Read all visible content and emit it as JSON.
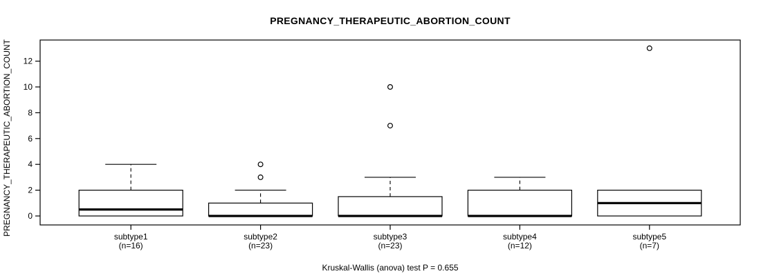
{
  "chart_data": {
    "type": "boxplot",
    "title": "PREGNANCY_THERAPEUTIC_ABORTION_COUNT",
    "ylabel": "PREGNANCY_THERAPEUTIC_ABORTION_COUNT",
    "footer": "Kruskal-Wallis (anova) test P = 0.655",
    "ylim": [
      0,
      13
    ],
    "yticks": [
      0,
      2,
      4,
      6,
      8,
      10,
      12
    ],
    "grid": false,
    "groups": [
      {
        "label": "subtype1",
        "n_label": "(n=16)",
        "n": 16,
        "q1": 0,
        "median": 0.5,
        "q3": 2,
        "whisker_low": 0,
        "whisker_high": 4,
        "outliers": []
      },
      {
        "label": "subtype2",
        "n_label": "(n=23)",
        "n": 23,
        "q1": 0,
        "median": 0,
        "q3": 1,
        "whisker_low": 0,
        "whisker_high": 2,
        "outliers": [
          3,
          4
        ]
      },
      {
        "label": "subtype3",
        "n_label": "(n=23)",
        "n": 23,
        "q1": 0,
        "median": 0,
        "q3": 1.5,
        "whisker_low": 0,
        "whisker_high": 3,
        "outliers": [
          7,
          10
        ]
      },
      {
        "label": "subtype4",
        "n_label": "(n=12)",
        "n": 12,
        "q1": 0,
        "median": 0,
        "q3": 2,
        "whisker_low": 0,
        "whisker_high": 3,
        "outliers": []
      },
      {
        "label": "subtype5",
        "n_label": "(n=7)",
        "n": 7,
        "q1": 0,
        "median": 1,
        "q3": 2,
        "whisker_low": 0,
        "whisker_high": 2,
        "outliers": [
          13
        ]
      }
    ],
    "colors": {
      "line": "#000000",
      "box_fill": "#ffffff",
      "background": "#ffffff"
    }
  }
}
